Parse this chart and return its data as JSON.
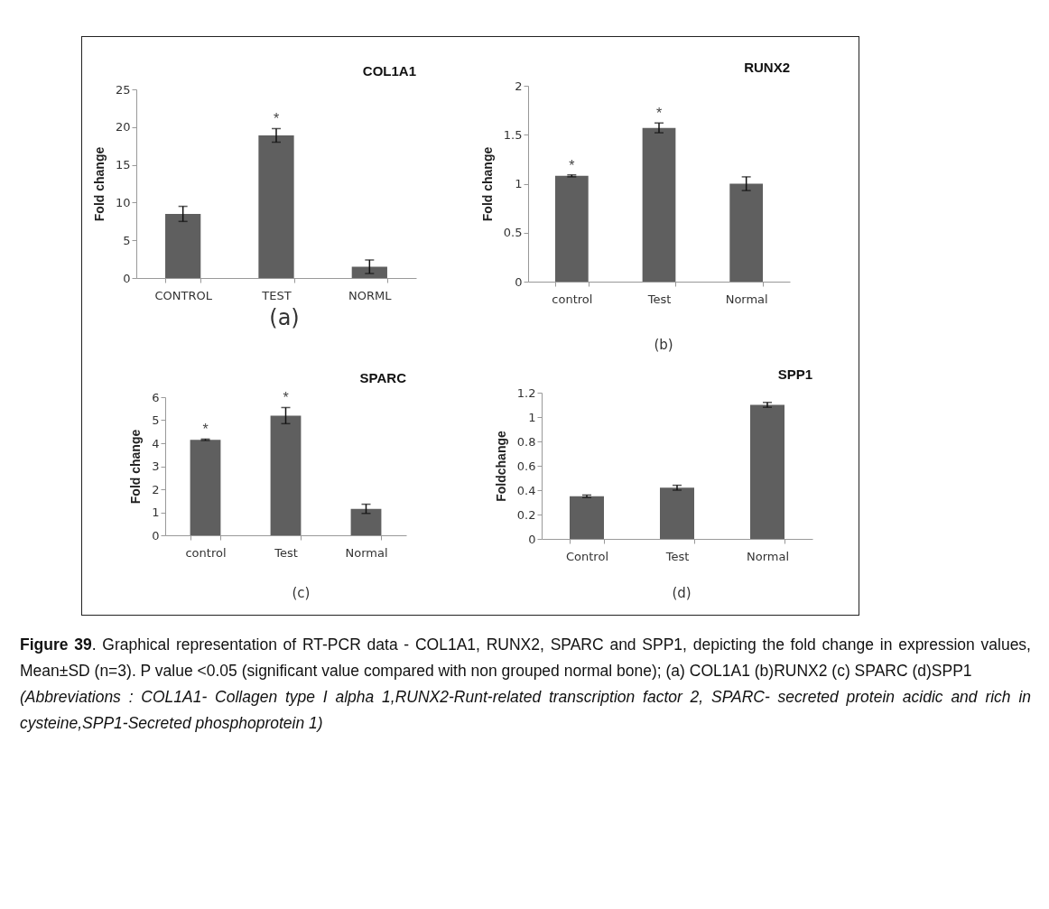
{
  "chart_data": [
    {
      "type": "bar",
      "title": "COL1A1",
      "ylabel": "Fold change",
      "categories": [
        "CONTROL",
        "TEST",
        "NORML"
      ],
      "values": [
        8.5,
        18.9,
        1.5
      ],
      "errors": [
        1,
        0.9,
        0.9
      ],
      "color": "#5f5f5f",
      "ylim": [
        0,
        25
      ],
      "yticks": [
        0,
        5,
        10,
        15,
        20,
        25
      ],
      "annotations": [
        "(a)",
        {
          "text": "*",
          "x": "TEST",
          "y": 18.9
        }
      ]
    },
    {
      "type": "bar",
      "title": "RUNX2",
      "ylabel": "Fold change",
      "categories": [
        "control",
        "Test",
        "Normal"
      ],
      "values": [
        1.08,
        1.57,
        1.0
      ],
      "errors": [
        0.01,
        0.05,
        0.07
      ],
      "color": "#5f5f5f",
      "ylim": [
        0,
        2
      ],
      "yticks": [
        0,
        0.5,
        1,
        1.5,
        2
      ],
      "annotations": [
        "(b)",
        {
          "text": "*",
          "x": "control",
          "y": 1.08
        },
        {
          "text": "*",
          "x": "Test",
          "y": 1.57
        }
      ]
    },
    {
      "type": "bar",
      "title": "SPARC",
      "ylabel": "Fold change",
      "categories": [
        "control",
        "Test",
        "Normal"
      ],
      "values": [
        4.15,
        5.2,
        1.15
      ],
      "errors": [
        0.03,
        0.35,
        0.2
      ],
      "color": "#5f5f5f",
      "ylim": [
        0,
        6
      ],
      "yticks": [
        0,
        1,
        2,
        3,
        4,
        5,
        6
      ],
      "annotations": [
        "(c)",
        {
          "text": "*",
          "x": "control",
          "y": 4.15
        },
        {
          "text": "*",
          "x": "Test",
          "y": 5.2
        }
      ]
    },
    {
      "type": "bar",
      "title": "SPP1",
      "ylabel": "Foldchange",
      "categories": [
        "Control",
        "Test",
        "Normal"
      ],
      "values": [
        0.35,
        0.42,
        1.1
      ],
      "errors": [
        0.01,
        0.02,
        0.02
      ],
      "color": "#5f5f5f",
      "ylim": [
        0,
        1.2
      ],
      "yticks": [
        0,
        0.2,
        0.4,
        0.6,
        0.8,
        1,
        1.2
      ],
      "annotations": [
        "(d)",
        "Figure 39",
        ". Graphical representation of RT-PCR data - COL1A1, RUNX2, SPARC and SPP1, depicting the fold change in expression values, Mean±SD (n=3). P value <0.05 (significant value compared with non grouped normal bone); (a) COL1A1 (b)RUNX2 (c) SPARC (d)SPP1",
        "(Abbreviations : COL1A1- Collagen type I alpha 1,RUNX2-Runt-related transcription factor 2, SPARC- secreted protein acidic and rich in cysteine,SPP1-Secreted phosphoprotein 1)"
      ]
    }
  ]
}
